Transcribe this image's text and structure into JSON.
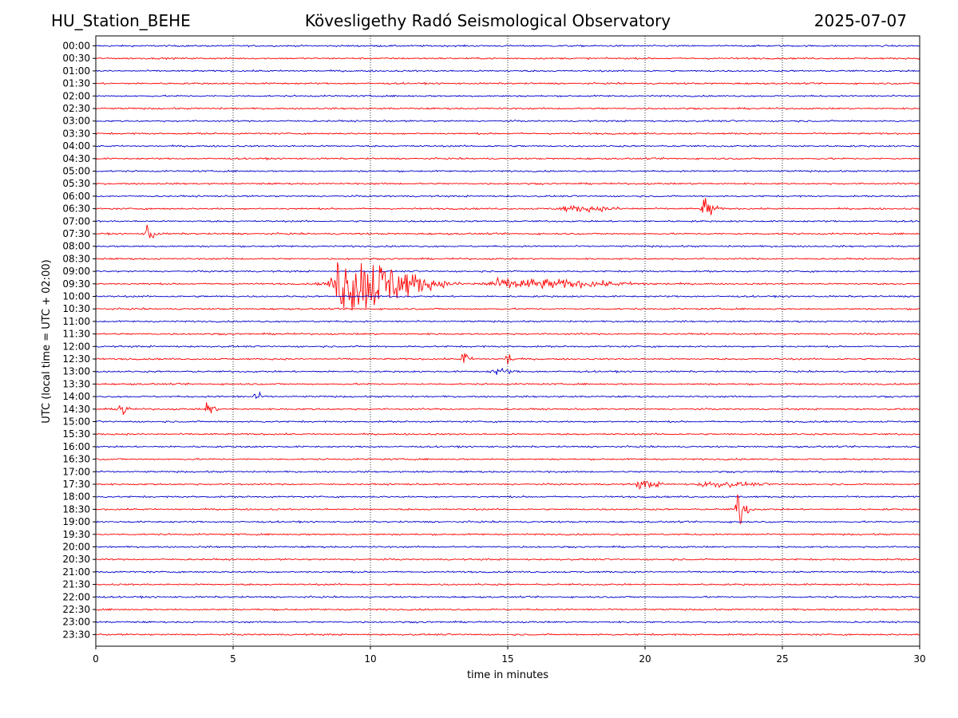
{
  "header": {
    "station": "HU_Station_BEHE",
    "observatory": "Kövesligethy Radó Seismological Observatory",
    "date": "2025-07-07"
  },
  "chart_data": {
    "type": "line",
    "xlabel": "time in minutes",
    "ylabel": "UTC (local time = UTC + 02:00)",
    "xlim": [
      0,
      30
    ],
    "xticks": [
      0,
      5,
      10,
      15,
      20,
      25,
      30
    ],
    "grid": "vertical dotted at x ticks",
    "colors": [
      "#0000cc",
      "#ff0000"
    ],
    "rows": [
      "00:00",
      "00:30",
      "01:00",
      "01:30",
      "02:00",
      "02:30",
      "03:00",
      "03:30",
      "04:00",
      "04:30",
      "05:00",
      "05:30",
      "06:00",
      "06:30",
      "07:00",
      "07:30",
      "08:00",
      "08:30",
      "09:00",
      "09:30",
      "10:00",
      "10:30",
      "11:00",
      "11:30",
      "12:00",
      "12:30",
      "13:00",
      "13:30",
      "14:00",
      "14:30",
      "15:00",
      "15:30",
      "16:00",
      "16:30",
      "17:00",
      "17:30",
      "18:00",
      "18:30",
      "19:00",
      "19:30",
      "20:00",
      "20:30",
      "21:00",
      "21:30",
      "22:00",
      "22:30",
      "23:00",
      "23:30"
    ],
    "noise_level": 0.12,
    "events": [
      {
        "row": "06:30",
        "center_min": 22.2,
        "amplitude": 1.6,
        "duration_min": 0.8
      },
      {
        "row": "06:30",
        "center_min": 17.5,
        "amplitude": 0.35,
        "duration_min": 4.0
      },
      {
        "row": "07:30",
        "center_min": 1.9,
        "amplitude": 1.5,
        "duration_min": 0.6
      },
      {
        "row": "09:30",
        "center_min": 9.5,
        "amplitude": 4.5,
        "duration_min": 5.0
      },
      {
        "row": "09:30",
        "center_min": 15.5,
        "amplitude": 0.7,
        "duration_min": 8.0
      },
      {
        "row": "12:30",
        "center_min": 13.4,
        "amplitude": 1.3,
        "duration_min": 0.5
      },
      {
        "row": "12:30",
        "center_min": 15.0,
        "amplitude": 0.9,
        "duration_min": 0.5
      },
      {
        "row": "13:00",
        "center_min": 14.6,
        "amplitude": 0.45,
        "duration_min": 1.2
      },
      {
        "row": "14:00",
        "center_min": 5.8,
        "amplitude": 1.1,
        "duration_min": 0.4
      },
      {
        "row": "14:30",
        "center_min": 0.9,
        "amplitude": 2.0,
        "duration_min": 0.5
      },
      {
        "row": "14:30",
        "center_min": 4.1,
        "amplitude": 1.4,
        "duration_min": 0.5
      },
      {
        "row": "17:30",
        "center_min": 19.9,
        "amplitude": 0.55,
        "duration_min": 1.5
      },
      {
        "row": "17:30",
        "center_min": 22.5,
        "amplitude": 0.35,
        "duration_min": 3.5
      },
      {
        "row": "18:30",
        "center_min": 23.4,
        "amplitude": 2.8,
        "duration_min": 0.7
      }
    ]
  }
}
